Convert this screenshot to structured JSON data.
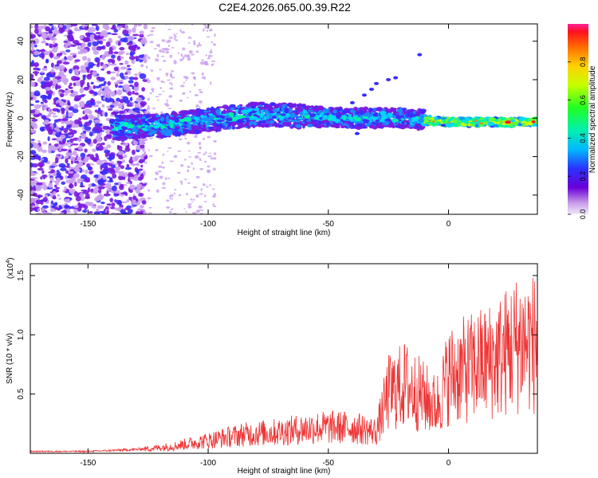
{
  "title": "C2E4.2026.065.00.39.R22",
  "chart_data": [
    {
      "type": "heatmap",
      "name": "spectrogram",
      "xlabel": "Height of straight line (km)",
      "ylabel": "Frequency (Hz)",
      "xlim": [
        -174,
        37
      ],
      "ylim": [
        -50,
        49
      ],
      "xticks": [
        -150,
        -100,
        -50,
        0
      ],
      "yticks": [
        -40,
        -20,
        0,
        20,
        40
      ],
      "colorbar": {
        "label": "Normalized spectral amplitude",
        "range": [
          0,
          1
        ],
        "ticks": [
          "0.0",
          "0.2",
          "0.4",
          "0.6",
          "0.8"
        ],
        "tick_values": [
          0.0,
          0.2,
          0.4,
          0.6,
          0.8
        ]
      },
      "ridge": [
        {
          "x": -140,
          "y": -5
        },
        {
          "x": -120,
          "y": -4
        },
        {
          "x": -100,
          "y": -1
        },
        {
          "x": -80,
          "y": 2
        },
        {
          "x": -60,
          "y": 1
        },
        {
          "x": -40,
          "y": 0
        },
        {
          "x": -20,
          "y": 0
        },
        {
          "x": 0,
          "y": -2
        },
        {
          "x": 37,
          "y": -2
        }
      ]
    },
    {
      "type": "line",
      "name": "snr",
      "xlabel": "Height of straight line (km)",
      "ylabel": "SNR (10 * v/v)",
      "y_scale_label": "(x10",
      "y_scale_exp": "4",
      "xlim": [
        -174,
        37
      ],
      "ylim": [
        0,
        1.6
      ],
      "xticks": [
        -150,
        -100,
        -50,
        0
      ],
      "yticks": [
        0.5,
        1.0,
        1.5
      ],
      "ytick_labels": [
        "0.5",
        "1.0",
        "1.5"
      ],
      "color": "#ee3333",
      "envelope": [
        {
          "x": -174,
          "y": 0.02
        },
        {
          "x": -150,
          "y": 0.02
        },
        {
          "x": -130,
          "y": 0.04
        },
        {
          "x": -115,
          "y": 0.08
        },
        {
          "x": -100,
          "y": 0.15
        },
        {
          "x": -85,
          "y": 0.22
        },
        {
          "x": -70,
          "y": 0.25
        },
        {
          "x": -55,
          "y": 0.3
        },
        {
          "x": -40,
          "y": 0.3
        },
        {
          "x": -30,
          "y": 0.25
        },
        {
          "x": -25,
          "y": 0.7
        },
        {
          "x": -18,
          "y": 0.8
        },
        {
          "x": -10,
          "y": 0.65
        },
        {
          "x": -5,
          "y": 0.55
        },
        {
          "x": 0,
          "y": 0.9
        },
        {
          "x": 10,
          "y": 1.0
        },
        {
          "x": 20,
          "y": 1.1
        },
        {
          "x": 30,
          "y": 1.3
        },
        {
          "x": 37,
          "y": 1.27
        }
      ]
    }
  ],
  "colors": {
    "line": "#ee3333",
    "axis": "#000000",
    "background": "#ffffff"
  }
}
